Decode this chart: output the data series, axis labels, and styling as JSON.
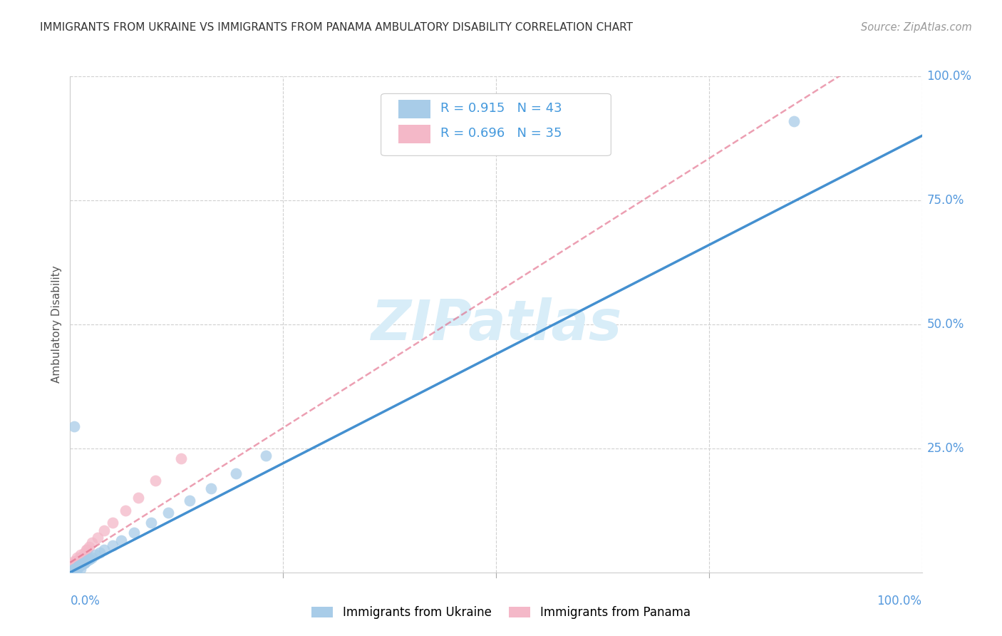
{
  "title": "IMMIGRANTS FROM UKRAINE VS IMMIGRANTS FROM PANAMA AMBULATORY DISABILITY CORRELATION CHART",
  "source": "Source: ZipAtlas.com",
  "ylabel": "Ambulatory Disability",
  "ukraine_R": 0.915,
  "ukraine_N": 43,
  "panama_R": 0.696,
  "panama_N": 35,
  "ukraine_color": "#a8cce8",
  "panama_color": "#f4b8c8",
  "ukraine_line_color": "#4490d0",
  "panama_line_color": "#e06080",
  "background_color": "#ffffff",
  "watermark_color": "#d8edf8",
  "grid_color": "#d0d0d0",
  "tick_label_color": "#5599dd",
  "title_color": "#333333",
  "source_color": "#999999",
  "ylabel_color": "#555555",
  "legend_text_color": "#4499dd",
  "xlim": [
    0.0,
    1.0
  ],
  "ylim": [
    0.0,
    1.0
  ],
  "xticks": [
    0.0,
    0.25,
    0.5,
    0.75,
    1.0
  ],
  "yticks": [
    0.25,
    0.5,
    0.75,
    1.0
  ],
  "xticklabels_bottom": [
    "0.0%",
    "",
    "",
    "",
    "100.0%"
  ],
  "yticklabels_right": [
    "25.0%",
    "50.0%",
    "75.0%",
    "100.0%"
  ],
  "uk_scatter_x": [
    0.002,
    0.003,
    0.004,
    0.004,
    0.005,
    0.005,
    0.006,
    0.006,
    0.007,
    0.007,
    0.008,
    0.008,
    0.009,
    0.009,
    0.01,
    0.01,
    0.011,
    0.012,
    0.013,
    0.014,
    0.015,
    0.016,
    0.017,
    0.019,
    0.021,
    0.023,
    0.026,
    0.03,
    0.035,
    0.04,
    0.05,
    0.06,
    0.075,
    0.095,
    0.115,
    0.14,
    0.165,
    0.195,
    0.23,
    0.005,
    0.008,
    0.012,
    0.85
  ],
  "uk_scatter_y": [
    0.003,
    0.004,
    0.005,
    0.006,
    0.006,
    0.007,
    0.007,
    0.008,
    0.008,
    0.009,
    0.009,
    0.01,
    0.01,
    0.011,
    0.012,
    0.013,
    0.014,
    0.015,
    0.016,
    0.017,
    0.018,
    0.019,
    0.02,
    0.022,
    0.025,
    0.027,
    0.03,
    0.035,
    0.04,
    0.045,
    0.055,
    0.065,
    0.08,
    0.1,
    0.12,
    0.145,
    0.17,
    0.2,
    0.235,
    0.295,
    0.005,
    0.007,
    0.91
  ],
  "pan_scatter_x": [
    0.001,
    0.002,
    0.003,
    0.003,
    0.004,
    0.004,
    0.005,
    0.005,
    0.006,
    0.006,
    0.007,
    0.007,
    0.008,
    0.009,
    0.01,
    0.011,
    0.012,
    0.013,
    0.014,
    0.016,
    0.019,
    0.022,
    0.026,
    0.032,
    0.04,
    0.05,
    0.065,
    0.08,
    0.1,
    0.13,
    0.003,
    0.005,
    0.008,
    0.012,
    0.02
  ],
  "pan_scatter_y": [
    0.01,
    0.013,
    0.008,
    0.012,
    0.01,
    0.015,
    0.012,
    0.018,
    0.015,
    0.02,
    0.016,
    0.022,
    0.018,
    0.024,
    0.02,
    0.025,
    0.027,
    0.03,
    0.032,
    0.038,
    0.045,
    0.052,
    0.06,
    0.07,
    0.085,
    0.1,
    0.125,
    0.15,
    0.185,
    0.23,
    0.018,
    0.022,
    0.03,
    0.035,
    0.045
  ],
  "uk_line": [
    0.0,
    0.0,
    1.0,
    0.88
  ],
  "pan_line": [
    0.0,
    0.02,
    0.35,
    0.38
  ]
}
